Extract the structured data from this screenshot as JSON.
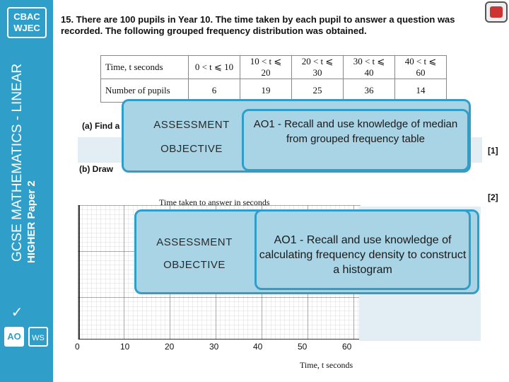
{
  "logo": {
    "line1": "CBAC",
    "line2": "WJEC"
  },
  "sidebar": {
    "subject": "GCSE MATHEMATICS - LINEAR",
    "paper": "HIGHER Paper 2"
  },
  "question": {
    "number_text": "15. There are 100 pupils in Year 10. The time taken by each pupil to answer a question was recorded. The following grouped frequency distribution was obtained."
  },
  "freq_table": {
    "row1_header": "Time, t seconds",
    "row2_header": "Number of pupils",
    "intervals": [
      "0 < t ⩽ 10",
      "10 < t ⩽ 20",
      "20 < t ⩽ 30",
      "30 < t ⩽ 40",
      "40 < t ⩽ 60"
    ],
    "counts": [
      "6",
      "19",
      "25",
      "36",
      "14"
    ]
  },
  "part_a": {
    "text": "(a) Find a",
    "mark": "[1]"
  },
  "part_b": {
    "text": "(b) Draw",
    "mark": "[2]"
  },
  "ao_box_1": {
    "label_line1": "ASSESSMENT",
    "label_line2": "OBJECTIVE",
    "description": "AO1 - Recall and use knowledge of median from grouped frequency table"
  },
  "ao_box_2": {
    "label_line1": "ASSESSMENT",
    "label_line2": "OBJECTIVE",
    "description": "AO1 - Recall and use knowledge of calculating frequency density to construct a histogram"
  },
  "graph": {
    "title": "Time taken to answer in seconds",
    "x_label": "Time, t seconds",
    "x_ticks": [
      "0",
      "10",
      "20",
      "30",
      "40",
      "50",
      "60"
    ]
  },
  "icons": {
    "check": "check-icon",
    "ao": "ao-icon",
    "ws": "ws-icon",
    "corner": "exam-icon"
  },
  "colors": {
    "sidebar": "#2f9fca",
    "ao_fill": "#a8d4e5"
  }
}
